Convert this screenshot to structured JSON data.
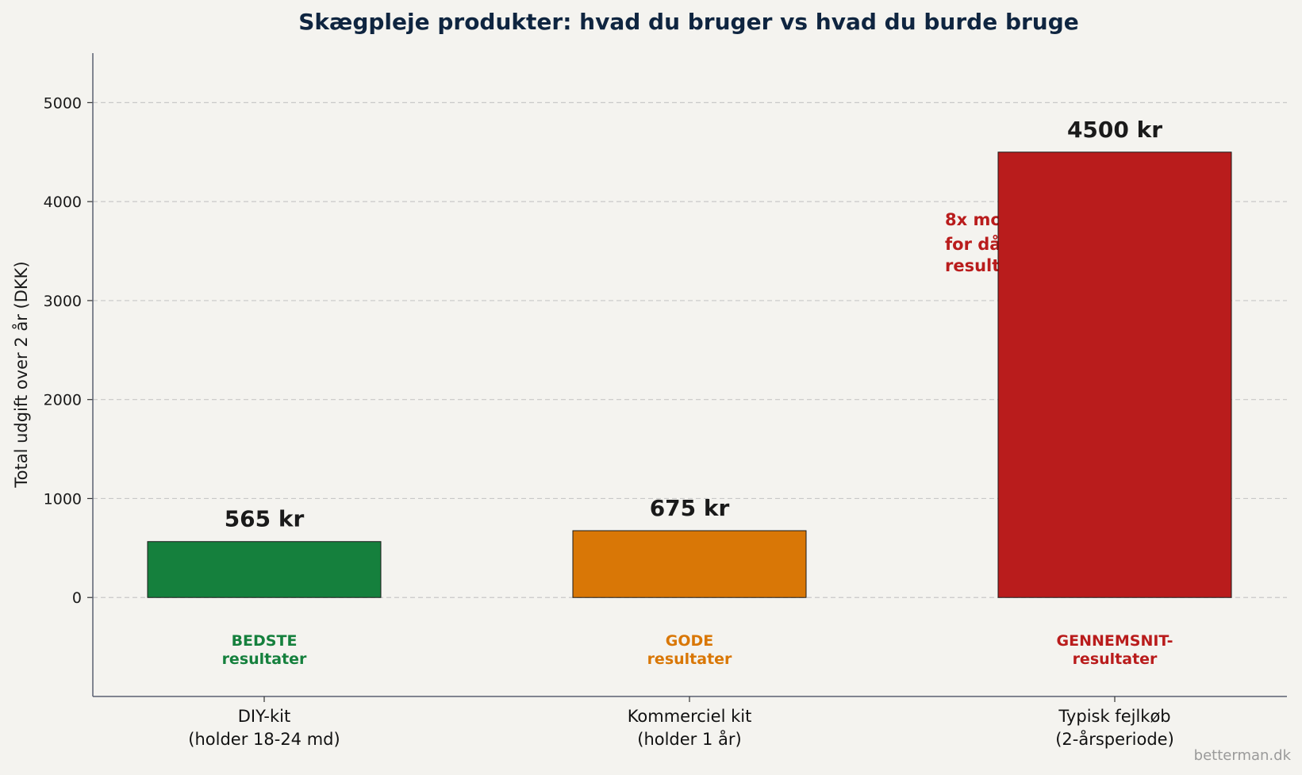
{
  "chart_data": {
    "type": "bar",
    "title": "Skægpleje produkter: hvad du bruger vs hvad du burde bruge",
    "xlabel": "",
    "ylabel": "Total udgift over 2 år (DKK)",
    "ylim": [
      -1000,
      5500
    ],
    "yticks": [
      0,
      1000,
      2000,
      3000,
      4000,
      5000
    ],
    "grid": true,
    "categories": [
      [
        "DIY-kit",
        "(holder 18-24 md)"
      ],
      [
        "Kommerciel kit",
        "(holder 1 år)"
      ],
      [
        "Typisk fejlkøb",
        "(2-årsperiode)"
      ]
    ],
    "values": [
      565,
      675,
      4500
    ],
    "value_labels": [
      "565 kr",
      "675 kr",
      "4500 kr"
    ],
    "colors": [
      "#15803d",
      "#d97706",
      "#b91c1c"
    ],
    "tier_labels": [
      [
        "BEDSTE",
        "resultater"
      ],
      [
        "GODE",
        "resultater"
      ],
      [
        "GENNEMSNIT-",
        "resultater"
      ]
    ],
    "annotation": [
      "8x mo",
      "for då",
      "result"
    ],
    "annotation_color": "#b91c1c"
  },
  "credit": "betterman.dk",
  "colors": {
    "background": "#f4f3ef",
    "title": "#0f2540",
    "grid": "#c8c8c8",
    "axis": "#5a6070"
  }
}
